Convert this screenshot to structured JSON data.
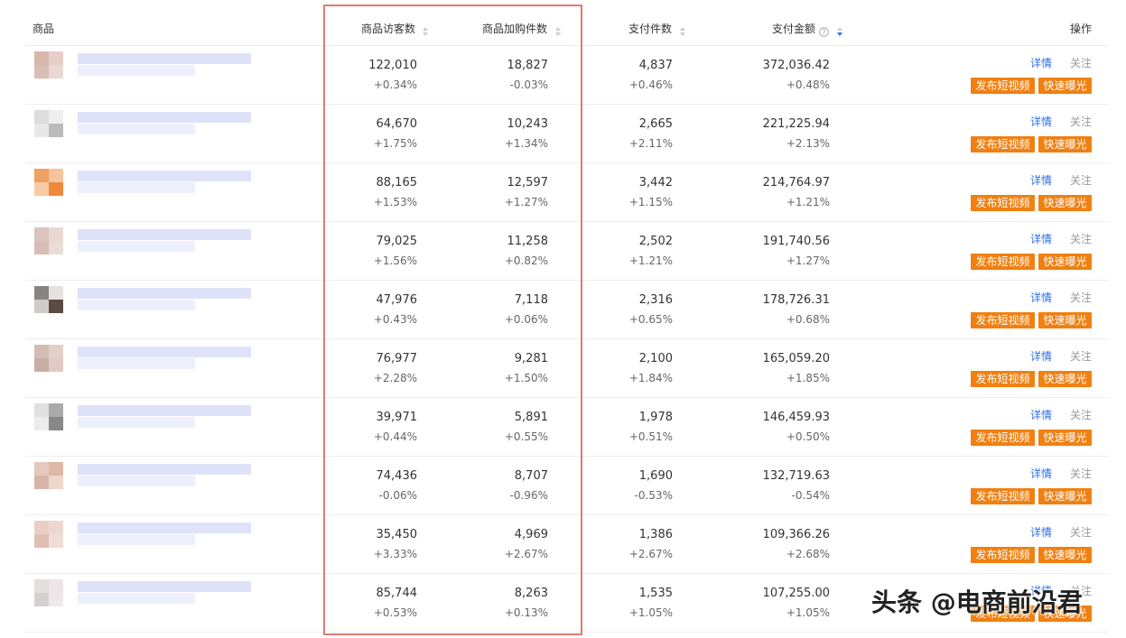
{
  "table": {
    "headers": [
      "商品",
      "商品访客数",
      "商品加购件数",
      "支付件数",
      "支付金额",
      "操作"
    ],
    "rows": [
      [
        "122,010",
        "+0.34%",
        "18,827",
        "-0.03%",
        "4,837",
        "+0.46%",
        "372,036.42",
        "+0.48%"
      ],
      [
        "64,670",
        "+1.75%",
        "10,243",
        "+1.34%",
        "2,665",
        "+2.11%",
        "221,225.94",
        "+2.13%"
      ],
      [
        "88,165",
        "+1.53%",
        "12,597",
        "+1.27%",
        "3,442",
        "+1.15%",
        "214,764.97",
        "+1.21%"
      ],
      [
        "79,025",
        "+1.56%",
        "11,258",
        "+0.82%",
        "2,502",
        "+1.21%",
        "191,740.56",
        "+1.27%"
      ],
      [
        "47,976",
        "+0.43%",
        "7,118",
        "+0.06%",
        "2,316",
        "+0.65%",
        "178,726.31",
        "+0.68%"
      ],
      [
        "76,977",
        "+2.28%",
        "9,281",
        "+1.50%",
        "2,100",
        "+1.84%",
        "165,059.20",
        "+1.85%"
      ],
      [
        "39,971",
        "+0.44%",
        "5,891",
        "+0.55%",
        "1,978",
        "+0.51%",
        "146,459.93",
        "+0.50%"
      ],
      [
        "74,436",
        "-0.06%",
        "8,707",
        "-0.96%",
        "1,690",
        "-0.53%",
        "132,719.63",
        "-0.54%"
      ],
      [
        "35,450",
        "+3.33%",
        "4,969",
        "+2.67%",
        "1,386",
        "+2.67%",
        "109,366.26",
        "+2.68%"
      ],
      [
        "85,744",
        "+0.53%",
        "8,263",
        "+0.13%",
        "1,535",
        "+1.05%",
        "107,255.00",
        "+1.05%"
      ]
    ]
  },
  "actions": [
    "详情",
    "关注",
    "发布短视频",
    "快速曝光"
  ],
  "watermark": "头条 @电商前沿君"
}
